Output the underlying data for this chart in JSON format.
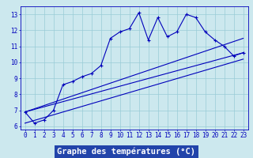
{
  "x": [
    0,
    1,
    2,
    3,
    4,
    5,
    6,
    7,
    8,
    9,
    10,
    11,
    12,
    13,
    14,
    15,
    16,
    17,
    18,
    19,
    20,
    21,
    22,
    23
  ],
  "temp_line": [
    6.9,
    6.2,
    6.4,
    7.0,
    8.6,
    8.8,
    9.1,
    9.3,
    9.8,
    11.5,
    11.9,
    12.1,
    13.1,
    11.4,
    12.8,
    11.6,
    11.9,
    13.0,
    12.8,
    11.9,
    11.4,
    11.0,
    10.4,
    10.6
  ],
  "trend1_x": [
    0,
    23
  ],
  "trend1_y": [
    6.9,
    10.6
  ],
  "trend2_x": [
    0,
    23
  ],
  "trend2_y": [
    6.9,
    11.5
  ],
  "trend3_x": [
    0,
    23
  ],
  "trend3_y": [
    6.2,
    10.2
  ],
  "bg_color": "#cce8ee",
  "line_color": "#0000bb",
  "grid_color": "#99ccd6",
  "xlabel": "Graphe des températures (°C)",
  "xlabel_bg": "#2244aa",
  "xlabel_fg": "#ffffff",
  "xlabel_fontsize": 7.5,
  "ylim": [
    5.8,
    13.5
  ],
  "xlim": [
    -0.5,
    23.5
  ],
  "yticks": [
    6,
    7,
    8,
    9,
    10,
    11,
    12,
    13
  ],
  "xticks": [
    0,
    1,
    2,
    3,
    4,
    5,
    6,
    7,
    8,
    9,
    10,
    11,
    12,
    13,
    14,
    15,
    16,
    17,
    18,
    19,
    20,
    21,
    22,
    23
  ],
  "tick_fontsize": 5.5
}
